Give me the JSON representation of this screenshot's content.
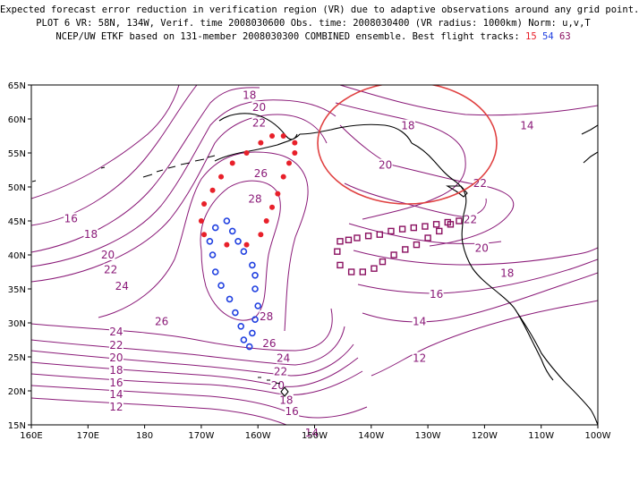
{
  "title": {
    "line1": "Expected forecast error reduction in verification region (VR) due to adaptive observations around any grid point.",
    "line2": "PLOT 6 VR: 58N, 134W, Verif. time 2008030600 Obs. time: 2008030400 (VR radius: 1000km) Norm: u,v,T",
    "line3_prefix": "NCEP/UW ETKF based on 131-member 2008030300 COMBINED ensemble.  Best flight tracks:",
    "track_a": "15",
    "track_b": "54",
    "track_c": "63"
  },
  "axes": {
    "x_ticks": [
      "160E",
      "170E",
      "180",
      "170W",
      "160W",
      "150W",
      "140W",
      "130W",
      "120W",
      "110W",
      "100W"
    ],
    "y_ticks": [
      "65N",
      "60N",
      "55N",
      "50N",
      "45N",
      "40N",
      "35N",
      "30N",
      "25N",
      "20N",
      "15N"
    ]
  },
  "contour_labels": [
    {
      "text": "18",
      "lon": -161.5,
      "lat": 63.5
    },
    {
      "text": "20",
      "lon": -159.8,
      "lat": 61.7
    },
    {
      "text": "22",
      "lon": -159.8,
      "lat": 59.4
    },
    {
      "text": "26",
      "lon": -159.5,
      "lat": 52.0
    },
    {
      "text": "28",
      "lon": -160.5,
      "lat": 48.2
    },
    {
      "text": "18",
      "lon": -133.5,
      "lat": 59.0
    },
    {
      "text": "20",
      "lon": -137.5,
      "lat": 53.2
    },
    {
      "text": "14",
      "lon": -112.5,
      "lat": 59.0
    },
    {
      "text": "22",
      "lon": -120.8,
      "lat": 50.5
    },
    {
      "text": "22",
      "lon": -122.5,
      "lat": 45.2
    },
    {
      "text": "20",
      "lon": -120.5,
      "lat": 41.0
    },
    {
      "text": "18",
      "lon": -116.0,
      "lat": 37.3
    },
    {
      "text": "16",
      "lon": -128.5,
      "lat": 34.2
    },
    {
      "text": "14",
      "lon": -131.5,
      "lat": 30.2
    },
    {
      "text": "12",
      "lon": -131.5,
      "lat": 24.8
    },
    {
      "text": "16",
      "lon": 167.0,
      "lat": 45.3
    },
    {
      "text": "18",
      "lon": 170.5,
      "lat": 43.0
    },
    {
      "text": "20",
      "lon": 173.5,
      "lat": 40.0
    },
    {
      "text": "22",
      "lon": 174.0,
      "lat": 37.8
    },
    {
      "text": "24",
      "lon": 176.0,
      "lat": 35.4
    },
    {
      "text": "26",
      "lon": -177.0,
      "lat": 30.2
    },
    {
      "text": "28",
      "lon": -158.5,
      "lat": 30.9
    },
    {
      "text": "26",
      "lon": -158.0,
      "lat": 27.0
    },
    {
      "text": "24",
      "lon": 175.0,
      "lat": 28.7
    },
    {
      "text": "22",
      "lon": 175.0,
      "lat": 26.7
    },
    {
      "text": "20",
      "lon": 175.0,
      "lat": 24.9
    },
    {
      "text": "18",
      "lon": 175.0,
      "lat": 23.0
    },
    {
      "text": "16",
      "lon": 175.0,
      "lat": 21.2
    },
    {
      "text": "14",
      "lon": 175.0,
      "lat": 19.5
    },
    {
      "text": "12",
      "lon": 175.0,
      "lat": 17.6
    },
    {
      "text": "24",
      "lon": -155.5,
      "lat": 24.8
    },
    {
      "text": "22",
      "lon": -156.0,
      "lat": 22.8
    },
    {
      "text": "20",
      "lon": -156.5,
      "lat": 20.8
    },
    {
      "text": "18",
      "lon": -155.0,
      "lat": 18.6
    },
    {
      "text": "16",
      "lon": -154.0,
      "lat": 17.0
    },
    {
      "text": "14",
      "lon": -150.5,
      "lat": 13.8
    }
  ],
  "verification_region": {
    "lat": 58,
    "lon": -134,
    "radius_km": 1000
  },
  "tracks": [
    {
      "id": "15",
      "marker": "filled-circle",
      "color": "#e8202a",
      "points": [
        [
          -155.5,
          57.5
        ],
        [
          -153.5,
          56.5
        ],
        [
          -153.5,
          55.0
        ],
        [
          -154.5,
          53.5
        ],
        [
          -155.5,
          51.5
        ],
        [
          -156.5,
          49.0
        ],
        [
          -157.5,
          47.0
        ],
        [
          -158.5,
          45.0
        ],
        [
          -159.5,
          43.0
        ],
        [
          -162.0,
          41.5
        ],
        [
          -165.5,
          41.5
        ],
        [
          -169.5,
          43.0
        ],
        [
          -170.0,
          45.0
        ],
        [
          -169.5,
          47.5
        ],
        [
          -168.0,
          49.5
        ],
        [
          -166.5,
          51.5
        ],
        [
          -164.5,
          53.5
        ],
        [
          -162.0,
          55.0
        ],
        [
          -159.5,
          56.5
        ],
        [
          -157.5,
          57.5
        ]
      ]
    },
    {
      "id": "54",
      "marker": "open-circle",
      "color": "#2040e0",
      "points": [
        [
          -165.5,
          45.0
        ],
        [
          -167.5,
          44.0
        ],
        [
          -168.5,
          42.0
        ],
        [
          -168.0,
          40.0
        ],
        [
          -167.5,
          37.5
        ],
        [
          -166.5,
          35.5
        ],
        [
          -165.0,
          33.5
        ],
        [
          -164.0,
          31.5
        ],
        [
          -163.0,
          29.5
        ],
        [
          -162.5,
          27.5
        ],
        [
          -161.5,
          26.5
        ],
        [
          -161.0,
          28.5
        ],
        [
          -160.5,
          30.5
        ],
        [
          -160.0,
          32.5
        ],
        [
          -160.5,
          35.0
        ],
        [
          -160.5,
          37.0
        ],
        [
          -161.0,
          38.5
        ],
        [
          -162.5,
          40.5
        ],
        [
          -163.5,
          42.0
        ],
        [
          -164.5,
          43.5
        ]
      ]
    },
    {
      "id": "63",
      "marker": "open-square",
      "color": "#8a1060",
      "points": [
        [
          -145.5,
          42.0
        ],
        [
          -146.0,
          40.5
        ],
        [
          -145.5,
          38.5
        ],
        [
          -143.5,
          37.5
        ],
        [
          -141.5,
          37.5
        ],
        [
          -139.5,
          38.0
        ],
        [
          -138.0,
          39.0
        ],
        [
          -136.0,
          40.0
        ],
        [
          -134.0,
          40.8
        ],
        [
          -132.0,
          41.5
        ],
        [
          -130.0,
          42.5
        ],
        [
          -128.0,
          43.5
        ],
        [
          -126.0,
          44.5
        ],
        [
          -124.5,
          45.0
        ],
        [
          -126.5,
          44.8
        ],
        [
          -128.5,
          44.5
        ],
        [
          -130.5,
          44.2
        ],
        [
          -132.5,
          44.0
        ],
        [
          -134.5,
          43.8
        ],
        [
          -136.5,
          43.5
        ],
        [
          -138.5,
          43.0
        ],
        [
          -140.5,
          42.8
        ],
        [
          -142.5,
          42.5
        ],
        [
          -144.0,
          42.2
        ]
      ]
    }
  ],
  "colors": {
    "contour": "#8a1a78",
    "vr_circle": "#e04040",
    "coast": "#000000",
    "frame": "#000000"
  }
}
